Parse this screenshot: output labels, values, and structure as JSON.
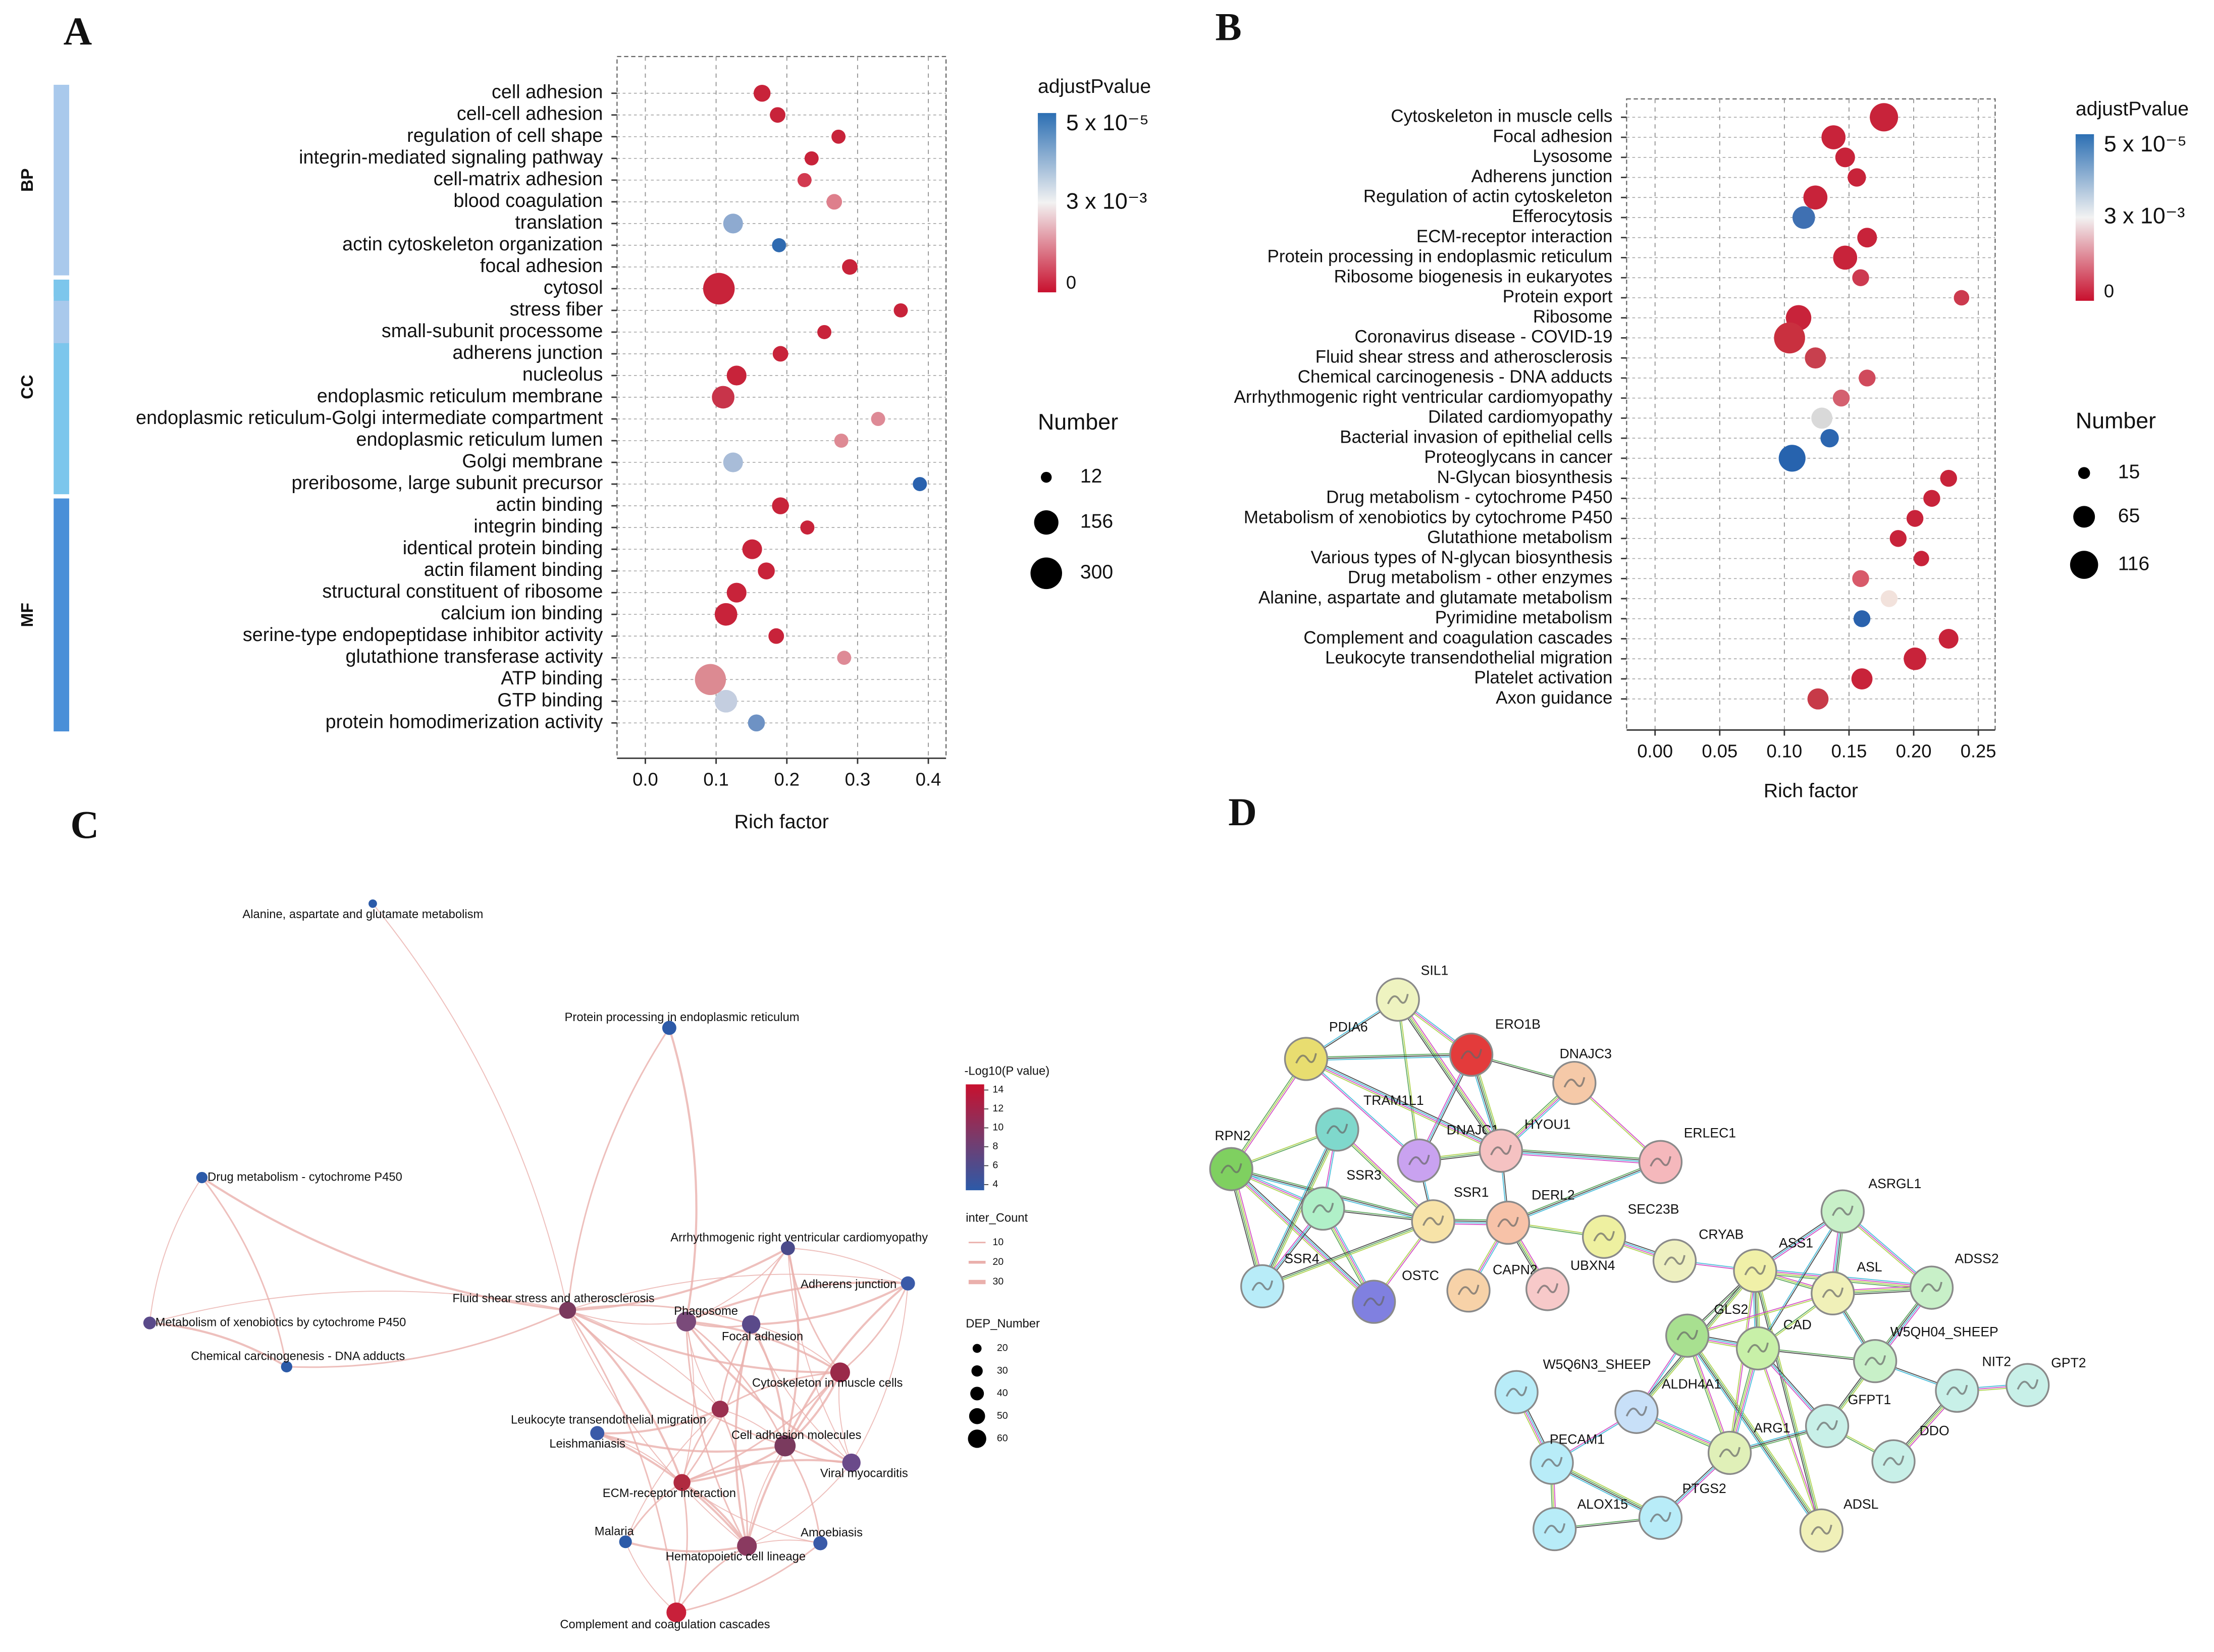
{
  "panel_labels": [
    "A",
    "B",
    "C",
    "D"
  ],
  "chart_data": [
    {
      "type": "dot",
      "groups": [
        "BP",
        "CC",
        "MF"
      ],
      "categories": [
        "cell adhesion",
        "cell-cell adhesion",
        "regulation of cell shape",
        "integrin-mediated signaling pathway",
        "cell-matrix adhesion",
        "blood coagulation",
        "translation",
        "actin cytoskeleton organization",
        "focal adhesion",
        "cytosol",
        "stress fiber",
        "small-subunit processome",
        "adherens junction",
        "nucleolus",
        "endoplasmic reticulum membrane",
        "endoplasmic reticulum-Golgi intermediate compartment",
        "endoplasmic reticulum lumen",
        "Golgi membrane",
        "preribosome, large subunit precursor",
        "actin binding",
        "integrin binding",
        "identical protein binding",
        "actin filament binding",
        "structural constituent of ribosome",
        "calcium ion binding",
        "serine-type endopeptidase inhibitor activity",
        "glutathione transferase activity",
        "ATP binding",
        "GTP binding",
        "protein homodimerization activity"
      ],
      "values": [
        0.165,
        0.187,
        0.273,
        0.235,
        0.225,
        0.267,
        0.124,
        0.189,
        0.289,
        0.104,
        0.361,
        0.253,
        0.191,
        0.129,
        0.11,
        0.329,
        0.277,
        0.124,
        0.388,
        0.191,
        0.229,
        0.151,
        0.171,
        0.129,
        0.114,
        0.185,
        0.281,
        0.092,
        0.114,
        0.157
      ],
      "sizes": [
        57,
        44,
        32,
        32,
        32,
        44,
        89,
        32,
        44,
        300,
        32,
        32,
        44,
        89,
        128,
        32,
        32,
        89,
        32,
        57,
        32,
        89,
        57,
        89,
        128,
        44,
        32,
        288,
        128,
        57
      ],
      "colors": [
        "#c8233a",
        "#c8233a",
        "#c8233a",
        "#c8233a",
        "#d23a50",
        "#de7f8c",
        "#8eaad0",
        "#2f6ab0",
        "#c8233a",
        "#c8233a",
        "#c8233a",
        "#c8233a",
        "#c8233a",
        "#c8233a",
        "#c8344a",
        "#de8a96",
        "#de8a94",
        "#a8bcd8",
        "#2a62ae",
        "#c8233a",
        "#c8233a",
        "#c8233a",
        "#c8233a",
        "#c8233a",
        "#c8233a",
        "#c8233a",
        "#de8a96",
        "#dc8a92",
        "#c4cee0",
        "#6e92c4"
      ],
      "xlabel": "Rich factor",
      "xlim": [
        -0.04,
        0.425
      ],
      "xticks": [
        {
          "value": 0,
          "label": "0.0"
        },
        0.1,
        0.2,
        0.3,
        0.4
      ],
      "grid": true,
      "color_legend": {
        "title": "adjustPvalue",
        "labels": [
          "5 x 10⁻⁵",
          "3 x 10⁻³",
          "0"
        ],
        "colors": [
          "#2c6fb3",
          "#f2f2f2",
          "#c8102e"
        ]
      },
      "size_legend": {
        "title": "Number",
        "values": [
          12,
          156,
          300
        ]
      }
    },
    {
      "type": "dot",
      "categories": [
        "Cytoskeleton in muscle cells",
        "Focal adhesion",
        "Lysosome",
        "Adherens junction",
        "Regulation of actin cytoskeleton",
        "Efferocytosis",
        "ECM-receptor interaction",
        "Protein processing in endoplasmic reticulum",
        "Ribosome biogenesis in eukaryotes",
        "Protein export",
        "Ribosome",
        "Coronavirus disease - COVID-19",
        "Fluid shear stress and atherosclerosis",
        "Chemical carcinogenesis - DNA adducts",
        "Arrhythmogenic right ventricular cardiomyopathy",
        "Dilated cardiomyopathy",
        "Bacterial invasion of epithelial cells",
        "Proteoglycans in cancer",
        "N-Glycan biosynthesis",
        "Drug metabolism - cytochrome P450",
        "Metabolism of xenobiotics by cytochrome P450",
        "Glutathione metabolism",
        "Various types of N-glycan biosynthesis",
        "Drug metabolism - other enzymes",
        "Alanine, aspartate and glutamate metabolism",
        "Pyrimidine metabolism",
        "Complement and coagulation cascades",
        "Leukocyte transendothelial migration",
        "Platelet activation",
        "Axon guidance"
      ],
      "values": [
        0.177,
        0.138,
        0.147,
        0.156,
        0.124,
        0.115,
        0.164,
        0.147,
        0.159,
        0.237,
        0.111,
        0.104,
        0.124,
        0.164,
        0.144,
        0.129,
        0.135,
        0.106,
        0.227,
        0.214,
        0.201,
        0.188,
        0.206,
        0.159,
        0.181,
        0.16,
        0.227,
        0.201,
        0.16,
        0.126
      ],
      "sizes": [
        118,
        82,
        52,
        44,
        82,
        71,
        52,
        82,
        36,
        29,
        93,
        145,
        61,
        36,
        36,
        61,
        44,
        105,
        36,
        36,
        36,
        36,
        29,
        36,
        36,
        36,
        52,
        71,
        61,
        61
      ],
      "colors": [
        "#c8233a",
        "#c8233a",
        "#c8233a",
        "#c8233a",
        "#c8233a",
        "#3f70b2",
        "#c8233a",
        "#c8233a",
        "#cd3a50",
        "#cc3a4e",
        "#c8233a",
        "#c9303f",
        "#c8404e",
        "#d04a5c",
        "#d4606f",
        "#d9d9d9",
        "#2c66b0",
        "#2763ae",
        "#c8233a",
        "#c8233a",
        "#c8233a",
        "#c8233a",
        "#c8233a",
        "#d85a6a",
        "#f2e2dc",
        "#2a62ad",
        "#c8233a",
        "#c8233a",
        "#c8233a",
        "#c73a48"
      ],
      "xlabel": "Rich factor",
      "xlim": [
        -0.022,
        0.263
      ],
      "xticks": [
        {
          "value": 0,
          "label": "0.00"
        },
        0.05,
        {
          "value": 0.1,
          "label": "0.10"
        },
        0.15,
        {
          "value": 0.2,
          "label": "0.20"
        },
        0.25
      ],
      "grid": true,
      "color_legend": {
        "title": "adjustPvalue",
        "labels": [
          "5 x 10⁻⁵",
          "3 x 10⁻³",
          "0"
        ],
        "colors": [
          "#2c6fb3",
          "#f2f2f2",
          "#c8102e"
        ]
      },
      "size_legend": {
        "title": "Number",
        "values": [
          15,
          65,
          116
        ]
      }
    }
  ],
  "network_c": {
    "nodes": [
      "Alanine, aspartate and glutamate metabolism",
      "Protein processing in endoplasmic reticulum",
      "Drug metabolism - cytochrome P450",
      "Metabolism of xenobiotics by cytochrome P450",
      "Chemical carcinogenesis - DNA adducts",
      "Fluid shear stress and atherosclerosis",
      "Phagosome",
      "Focal adhesion",
      "Arrhythmogenic right ventricular cardiomyopathy",
      "Adherens junction",
      "Cytoskeleton in muscle cells",
      "Leukocyte transendothelial migration",
      "Leishmaniasis",
      "Cell adhesion molecules",
      "Viral myocarditis",
      "ECM-receptor interaction",
      "Malaria",
      "Hematopoietic cell lineage",
      "Amoebiasis",
      "Complement and coagulation cascades"
    ],
    "legend": {
      "color_title": "-Log10(P value)",
      "color_ticks": [
        14,
        12,
        10,
        8,
        6,
        4
      ],
      "edge_title": "inter_Count",
      "edge_ticks": [
        10,
        20,
        30
      ],
      "size_title": "DEP_Number",
      "size_ticks": [
        20,
        30,
        40,
        50,
        60
      ]
    }
  },
  "network_d": {
    "nodes": [
      "SIL1",
      "PDIA6",
      "ERO1B",
      "DNAJC3",
      "TRAM1L1",
      "RPN2",
      "DNAJC1",
      "HYOU1",
      "ERLEC1",
      "SSR3",
      "SSR1",
      "DERL2",
      "SEC23B",
      "CRYAB",
      "ASRGL1",
      "ASS1",
      "ADSS2",
      "SSR4",
      "OSTC",
      "CAPN2",
      "UBXN4",
      "ASL",
      "GLS2",
      "CAD",
      "W5QH04_SHEEP",
      "W5Q6N3_SHEEP",
      "ALDH4A1",
      "NIT2",
      "GPT2",
      "GFPT1",
      "DDO",
      "PECAM1",
      "ARG1",
      "ALOX15",
      "PTGS2",
      "ADSL"
    ]
  }
}
